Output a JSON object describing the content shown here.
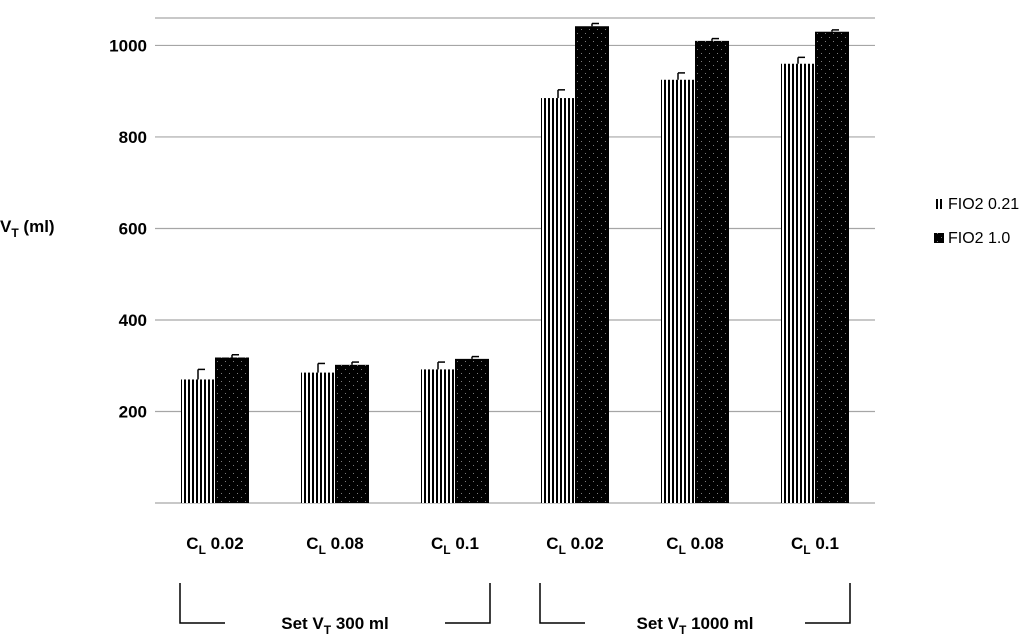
{
  "chart_data": {
    "type": "bar",
    "ylabel": {
      "main": "V",
      "sub": "T",
      "unit": " (ml)"
    },
    "ylim": [
      0,
      1060
    ],
    "yticks": [
      200,
      400,
      600,
      800,
      1000
    ],
    "grid": true,
    "legend_position": "right",
    "categories": [
      {
        "main": "C",
        "sub": "L",
        "value": " 0.02"
      },
      {
        "main": "C",
        "sub": "L",
        "value": " 0.08"
      },
      {
        "main": "C",
        "sub": "L",
        "value": " 0.1"
      },
      {
        "main": "C",
        "sub": "L",
        "value": " 0.02"
      },
      {
        "main": "C",
        "sub": "L",
        "value": " 0.08"
      },
      {
        "main": "C",
        "sub": "L",
        "value": " 0.1"
      }
    ],
    "groups": [
      {
        "pre": "Set V",
        "sub": "T",
        "post": " 300 ml",
        "categories": [
          0,
          1,
          2
        ]
      },
      {
        "pre": "Set V",
        "sub": "T",
        "post": " 1000 ml",
        "categories": [
          3,
          4,
          5
        ]
      }
    ],
    "series": [
      {
        "name": "FIO2 0.21",
        "pattern": "vertical-stripes",
        "values": [
          270,
          285,
          292,
          885,
          925,
          960
        ],
        "errors": [
          22,
          20,
          16,
          18,
          15,
          14
        ]
      },
      {
        "name": "FIO2 1.0",
        "pattern": "dotted-black",
        "values": [
          318,
          302,
          315,
          1042,
          1010,
          1030
        ],
        "errors": [
          6,
          6,
          5,
          6,
          5,
          4
        ]
      }
    ]
  }
}
